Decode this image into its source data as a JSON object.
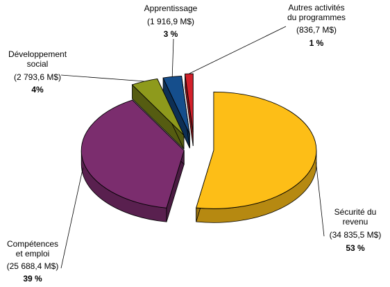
{
  "chart_data": {
    "type": "pie",
    "title": "",
    "exploded": true,
    "three_d": true,
    "unit": "M$",
    "slices": [
      {
        "name_lines": [
          "Sécurité du",
          "revenu"
        ],
        "amount_text": "(34 835,5 M$)",
        "value": 34835.5,
        "percent_text": "53 %",
        "percent": 53,
        "color": "#FDBE17"
      },
      {
        "name_lines": [
          "Compétences",
          "et emploi"
        ],
        "amount_text": "(25 688,4 M$)",
        "value": 25688.4,
        "percent_text": "39 %",
        "percent": 39,
        "color": "#7B2D6E"
      },
      {
        "name_lines": [
          "Développement",
          "social"
        ],
        "amount_text": "(2 793,6 M$)",
        "value": 2793.6,
        "percent_text": "4%",
        "percent": 4,
        "color": "#8E9A1C"
      },
      {
        "name_lines": [
          "Apprentissage"
        ],
        "amount_text": "(1 916,9 M$)",
        "value": 1916.9,
        "percent_text": "3 %",
        "percent": 3,
        "color": "#154E8C"
      },
      {
        "name_lines": [
          "Autres activités",
          "du programmes"
        ],
        "amount_text": "(836,7 M$)",
        "value": 836.7,
        "percent_text": "1 %",
        "percent": 1,
        "color": "#D3202A"
      }
    ]
  }
}
